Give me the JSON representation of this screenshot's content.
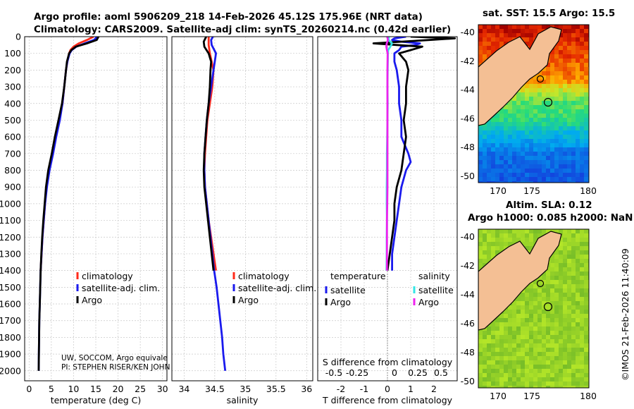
{
  "header": {
    "title_line1": "Argo profile: aoml 5906209_218 14-Feb-2026 45.12S 175.96E (NRT data)",
    "title_line2": "Climatology: CARS2009. Satellite-adj clim: synTS_20260214.nc (0.42d earlier)"
  },
  "colors": {
    "climatology": "#ff2a1a",
    "satellite": "#1a1aee",
    "argo": "#000000",
    "sat_s": "#33e5e5",
    "argo_s": "#ee22ee",
    "land": "#f4bf94"
  },
  "chart_data": [
    {
      "type": "line",
      "panel": "temperature",
      "xlabel": "temperature (deg C)",
      "xlim": [
        -1,
        31
      ],
      "ylim": [
        0,
        2060
      ],
      "xticks": [
        "0",
        "5",
        "10",
        "15",
        "20",
        "25",
        "30"
      ],
      "yticks": [
        "0",
        "100",
        "200",
        "300",
        "400",
        "500",
        "600",
        "700",
        "800",
        "900",
        "1000",
        "1100",
        "1200",
        "1300",
        "1400",
        "1500",
        "1600",
        "1700",
        "1800",
        "1900",
        "2000"
      ],
      "series": [
        {
          "name": "climatology",
          "color": "#ff2a1a",
          "depth": [
            0,
            20,
            40,
            60,
            80,
            100,
            150,
            200,
            300,
            400,
            500,
            600,
            700,
            800,
            900,
            1000,
            1100,
            1200,
            1300,
            1400
          ],
          "values": [
            14.5,
            13.0,
            11.2,
            10.0,
            9.3,
            9.0,
            8.6,
            8.3,
            7.9,
            7.5,
            6.8,
            6.0,
            5.3,
            4.5,
            3.9,
            3.6,
            3.3,
            3.0,
            2.8,
            2.6
          ]
        },
        {
          "name": "satellite-adj. clim.",
          "color": "#1a1aee",
          "depth": [
            0,
            20,
            40,
            60,
            80,
            100,
            150,
            200,
            300,
            400,
            500,
            600,
            700,
            800,
            900,
            1000,
            1100,
            1200,
            1300,
            1400,
            1500,
            1600,
            1700,
            1800,
            1900,
            2000
          ],
          "values": [
            15.3,
            14.6,
            12.5,
            10.6,
            9.6,
            9.1,
            8.6,
            8.3,
            7.9,
            7.5,
            6.9,
            6.1,
            5.4,
            4.6,
            4.0,
            3.6,
            3.3,
            3.0,
            2.8,
            2.6,
            2.5,
            2.4,
            2.3,
            2.25,
            2.2,
            2.15
          ]
        },
        {
          "name": "Argo",
          "color": "#000000",
          "depth": [
            0,
            20,
            40,
            60,
            80,
            100,
            150,
            200,
            300,
            400,
            500,
            600,
            700,
            800,
            900,
            1000,
            1100,
            1200,
            1300,
            1400,
            1500,
            1600,
            1700,
            1800,
            1900,
            2000
          ],
          "values": [
            15.6,
            15.2,
            13.0,
            10.5,
            9.5,
            9.0,
            8.5,
            8.3,
            7.9,
            7.4,
            6.6,
            5.8,
            5.1,
            4.3,
            3.8,
            3.5,
            3.2,
            2.95,
            2.75,
            2.6,
            2.5,
            2.4,
            2.3,
            2.25,
            2.2,
            2.15
          ]
        }
      ],
      "legend": [
        "climatology",
        "satellite-adj. clim.",
        "Argo"
      ],
      "annotations": [
        "UW, SOCCOM, Argo equivale",
        "PI: STEPHEN RISER/KEN JOHN"
      ]
    },
    {
      "type": "line",
      "panel": "salinity",
      "xlabel": "salinity",
      "xlim": [
        33.8,
        36.1
      ],
      "ylim": [
        0,
        2060
      ],
      "xticks": [
        "34",
        "34.5",
        "35",
        "35.5",
        "36"
      ],
      "series": [
        {
          "name": "climatology",
          "color": "#ff2a1a",
          "depth": [
            0,
            50,
            100,
            200,
            300,
            400,
            500,
            600,
            700,
            800,
            900,
            1000,
            1100,
            1200,
            1300,
            1400
          ],
          "values": [
            34.4,
            34.4,
            34.42,
            34.48,
            34.46,
            34.42,
            34.38,
            34.36,
            34.34,
            34.33,
            34.34,
            34.37,
            34.4,
            34.44,
            34.48,
            34.52
          ]
        },
        {
          "name": "satellite-adj. clim.",
          "color": "#1a1aee",
          "depth": [
            0,
            20,
            50,
            100,
            200,
            300,
            400,
            500,
            600,
            700,
            800,
            900,
            1000,
            1100,
            1200,
            1300,
            1400,
            1500,
            1600,
            1700,
            1800,
            1900,
            2000
          ],
          "values": [
            34.47,
            34.44,
            34.45,
            34.52,
            34.48,
            34.44,
            34.4,
            34.37,
            34.35,
            34.33,
            34.33,
            34.34,
            34.37,
            34.4,
            34.43,
            34.46,
            34.49,
            34.53,
            34.56,
            34.59,
            34.62,
            34.64,
            34.67
          ]
        },
        {
          "name": "Argo",
          "color": "#000000",
          "depth": [
            0,
            30,
            60,
            100,
            150,
            200,
            300,
            400,
            500,
            600,
            700,
            800,
            900,
            1000,
            1100,
            1200,
            1300,
            1400
          ],
          "values": [
            34.36,
            34.32,
            34.33,
            34.4,
            34.44,
            34.43,
            34.42,
            34.4,
            34.37,
            34.35,
            34.33,
            34.32,
            34.33,
            34.36,
            34.39,
            34.42,
            34.45,
            34.48
          ]
        }
      ],
      "legend": [
        "climatology",
        "satellite-adj. clim.",
        "Argo"
      ]
    },
    {
      "type": "line",
      "panel": "difference",
      "xlabel": "T difference from climatology",
      "xlabel_top": "S difference from climatology",
      "xlim": [
        -3,
        3
      ],
      "ylim": [
        0,
        2060
      ],
      "xticks": [
        "-2",
        "-1",
        "0",
        "1",
        "2"
      ],
      "xticks_s": [
        "-0.5",
        "-0.25",
        "0",
        "0.25",
        "0.5"
      ],
      "series": [
        {
          "name": "temperature satellite",
          "color": "#1a1aee",
          "depth": [
            0,
            10,
            20,
            30,
            40,
            50,
            60,
            80,
            100,
            150,
            200,
            300,
            400,
            500,
            600,
            700,
            750,
            800,
            900,
            1000,
            1100,
            1200,
            1300,
            1400
          ],
          "values": [
            0.8,
            0.3,
            0.2,
            0.6,
            1.4,
            1.2,
            0.6,
            0.5,
            0.3,
            0.3,
            0.4,
            0.5,
            0.5,
            0.6,
            0.6,
            0.9,
            1.0,
            0.8,
            0.6,
            0.5,
            0.4,
            0.3,
            0.2,
            0.2
          ]
        },
        {
          "name": "temperature Argo",
          "color": "#000000",
          "depth": [
            0,
            10,
            20,
            30,
            40,
            50,
            60,
            80,
            100,
            150,
            200,
            300,
            400,
            500,
            600,
            700,
            800,
            900,
            1000,
            1100,
            1200,
            1300,
            1400
          ],
          "values": [
            1.0,
            2.9,
            1.8,
            0.6,
            -0.6,
            0.4,
            1.5,
            1.0,
            0.5,
            0.8,
            0.9,
            0.8,
            0.8,
            0.7,
            0.8,
            0.7,
            0.6,
            0.4,
            0.3,
            0.3,
            0.2,
            0.1,
            0.0
          ]
        },
        {
          "name": "salinity satellite",
          "color": "#33e5e5",
          "depth": [
            0,
            20,
            40,
            60,
            80,
            100,
            200,
            300,
            400,
            500,
            600,
            700,
            800,
            900,
            1000,
            1100,
            1200,
            1300,
            1400
          ],
          "values": [
            0.06,
            0.05,
            0.2,
            0.12,
            0.03,
            0.02,
            0.01,
            0.0,
            0.01,
            0.0,
            -0.01,
            -0.02,
            -0.02,
            -0.03,
            -0.03,
            -0.02,
            -0.03,
            -0.03,
            -0.04
          ]
        },
        {
          "name": "salinity Argo",
          "color": "#ee22ee",
          "depth": [
            0,
            20,
            40,
            60,
            80,
            100,
            200,
            300,
            400,
            500,
            600,
            700,
            800,
            900,
            1000,
            1100,
            1200,
            1300,
            1400
          ],
          "values": [
            -0.01,
            0.02,
            -0.03,
            -0.05,
            -0.02,
            0.01,
            0.0,
            0.0,
            0.0,
            0.0,
            0.0,
            0.0,
            0.0,
            0.0,
            -0.01,
            -0.02,
            -0.02,
            -0.02,
            -0.02
          ]
        }
      ],
      "legend_groups": {
        "temperature": "temperature",
        "salinity": "salinity",
        "satellite": "satellite",
        "argo": "Argo"
      }
    }
  ],
  "maps": {
    "sst": {
      "title": "sat. SST: 15.5 Argo: 15.5",
      "yticks": [
        "-40",
        "-42",
        "-44",
        "-46",
        "-48",
        "-50"
      ],
      "xticks": [
        "170",
        "175",
        "180"
      ]
    },
    "sla": {
      "title1": "Altim. SLA: 0.12",
      "title2": "Argo h1000: 0.085 h2000: NaN",
      "yticks": [
        "-40",
        "-42",
        "-44",
        "-46",
        "-48",
        "-50"
      ],
      "xticks": [
        "170",
        "175",
        "180"
      ]
    }
  },
  "footer": {
    "stamp": "©IMOS 21-Feb-2026 11:40:09"
  }
}
